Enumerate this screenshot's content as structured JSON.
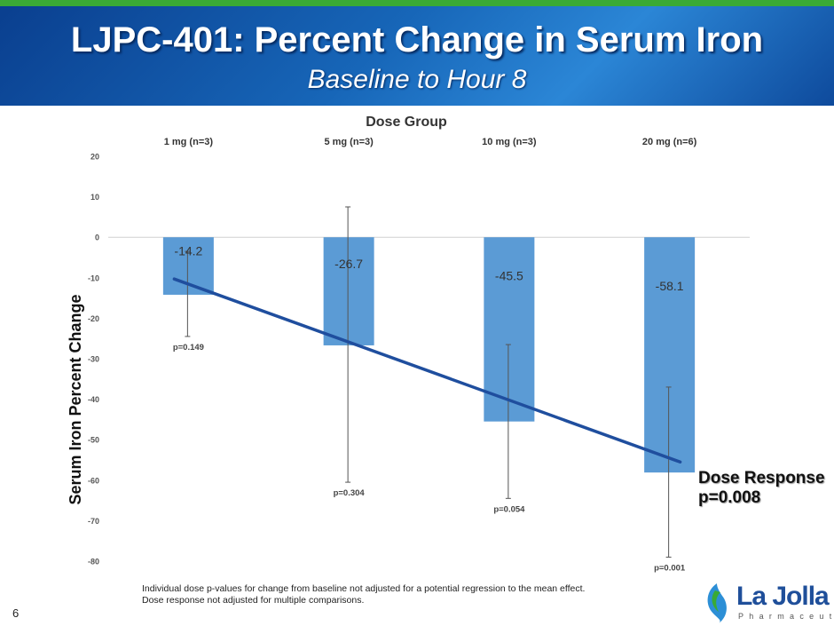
{
  "header": {
    "title": "LJPC-401: Percent Change in Serum Iron",
    "subtitle": "Baseline to Hour 8"
  },
  "chart_data": {
    "type": "bar",
    "title": "Dose Group",
    "xlabel": "Dose Group",
    "ylabel": "Serum Iron Percent Change",
    "ylim": [
      -80,
      20
    ],
    "yticks": [
      "20",
      "10",
      "0",
      "-10",
      "-20",
      "-30",
      "-40",
      "-50",
      "-60",
      "-70",
      "-80"
    ],
    "ytick_values": [
      20,
      10,
      0,
      -10,
      -20,
      -30,
      -40,
      -50,
      -60,
      -70,
      -80
    ],
    "categories": [
      "1 mg (n=3)",
      "5 mg (n=3)",
      "10 mg (n=3)",
      "20 mg (n=6)"
    ],
    "values": [
      -14.2,
      -26.7,
      -45.5,
      -58.1
    ],
    "value_labels": [
      "-14.2",
      "-26.7",
      "-45.5",
      "-58.1"
    ],
    "error_high": [
      -3.5,
      7.5,
      -26.5,
      -37
    ],
    "error_low": [
      -24.5,
      -60.5,
      -64.5,
      -79
    ],
    "p_values": [
      "p=0.149",
      "p=0.304",
      "p=0.054",
      "p=0.001"
    ],
    "trend_line": {
      "start": -10.3,
      "end": -55.5
    },
    "bar_color": "#5b9bd5",
    "trend_color": "#1f4e9e",
    "legend": "none"
  },
  "annotations": {
    "dose_response_label": "Dose Response",
    "dose_response_p": "p=0.008"
  },
  "footnote": {
    "line1": "Individual dose p-values for change from baseline not adjusted for a potential regression to the mean effect.",
    "line2": "Dose response not adjusted for multiple comparisons."
  },
  "page_number": "6",
  "logo": {
    "name": "La Jolla",
    "tagline": "Pharmaceutical"
  }
}
